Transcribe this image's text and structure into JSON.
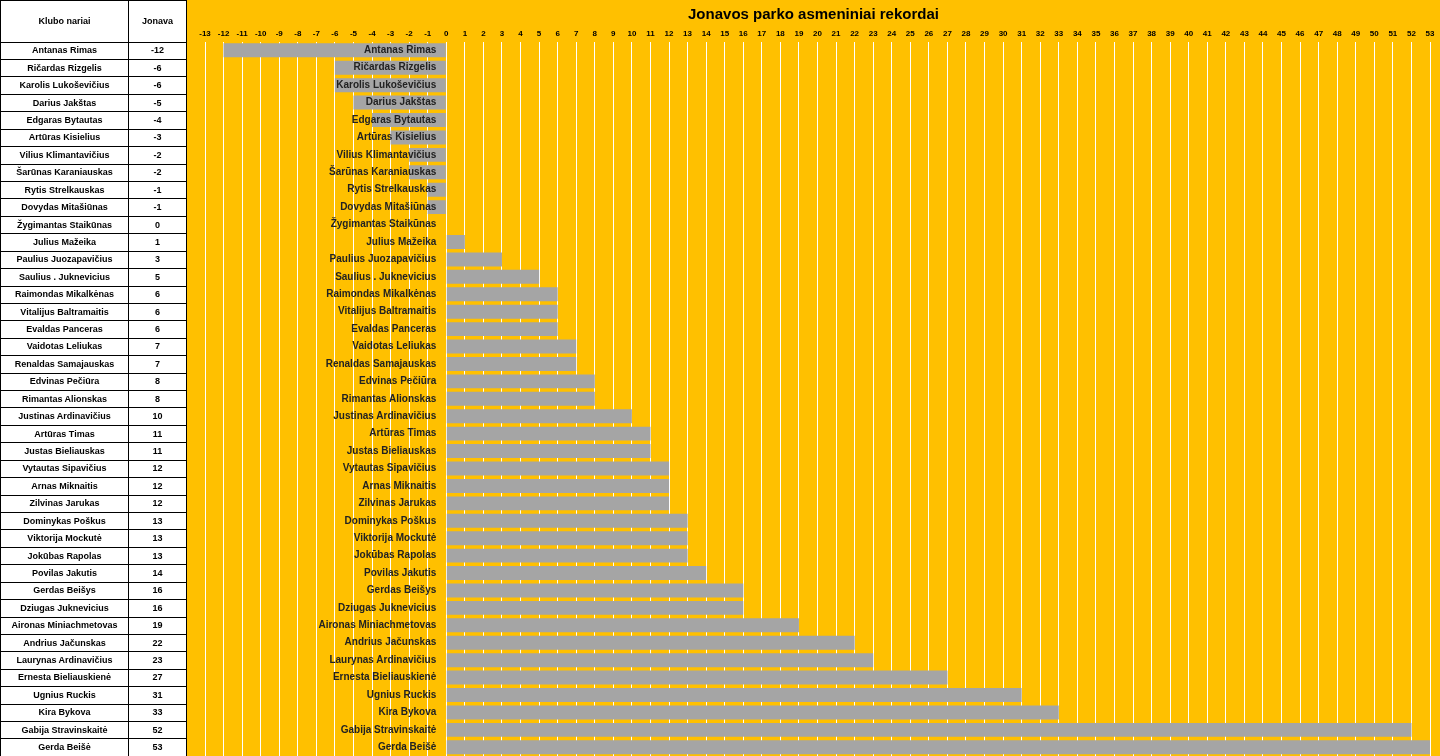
{
  "chart_data": {
    "type": "bar",
    "orientation": "horizontal",
    "title": "Jonavos parko asmeniniai rekordai",
    "ylabel": "Klubo nariai",
    "categories": [
      "Antanas Rimas",
      "Ričardas Rizgelis",
      "Karolis Lukoševičius",
      "Darius Jakštas",
      "Edgaras Bytautas",
      "Artūras Kisielius",
      "Vilius Klimantavičius",
      "Šarūnas Karaniauskas",
      "Rytis Strelkauskas",
      "Dovydas Mitašiūnas",
      "Žygimantas Staikūnas",
      "Julius Mažeika",
      "Paulius Juozapavičius",
      "Saulius . Juknevicius",
      "Raimondas Mikalkėnas",
      "Vitalijus Baltramaitis",
      "Evaldas Panceras",
      "Vaidotas Leliukas",
      "Renaldas Samajauskas",
      "Edvinas Pečiūra",
      "Rimantas Alionskas",
      "Justinas Ardinavičius",
      "Artūras Timas",
      "Justas Bieliauskas",
      "Vytautas Sipavičius",
      "Arnas Miknaitis",
      "Zilvinas Jarukas",
      "Dominykas Poškus",
      "Viktorija Mockutė",
      "Jokūbas Rapolas",
      "Povilas Jakutis",
      "Gerdas Beišys",
      "Dziugas Juknevicius",
      "Aironas Miniachmetovas",
      "Andrius Jačunskas",
      "Laurynas Ardinavičius",
      "Ernesta Bieliauskienė",
      "Ugnius Ruckis",
      "Kira Bykova",
      "Gabija Stravinskaitė",
      "Gerda Beišė"
    ],
    "series": [
      {
        "name": "Jonava",
        "color": "#a5a5a5",
        "values": [
          -12,
          -6,
          -6,
          -5,
          -4,
          -3,
          -2,
          -2,
          -1,
          -1,
          0,
          1,
          3,
          5,
          6,
          6,
          6,
          7,
          7,
          8,
          8,
          10,
          11,
          11,
          12,
          12,
          12,
          13,
          13,
          13,
          14,
          16,
          16,
          19,
          22,
          23,
          27,
          31,
          33,
          52,
          53
        ]
      }
    ],
    "xlim": [
      -13,
      53
    ],
    "xticks": [
      -13,
      -12,
      -11,
      -10,
      -9,
      -8,
      -7,
      -6,
      -5,
      -4,
      -3,
      -2,
      -1,
      0,
      1,
      2,
      3,
      4,
      5,
      6,
      7,
      8,
      9,
      10,
      11,
      12,
      13,
      14,
      15,
      16,
      17,
      18,
      19,
      20,
      21,
      22,
      23,
      24,
      25,
      26,
      27,
      28,
      29,
      30,
      31,
      32,
      33,
      34,
      35,
      36,
      37,
      38,
      39,
      40,
      41,
      42,
      43,
      44,
      45,
      46,
      47,
      48,
      49,
      50,
      51,
      52,
      53
    ],
    "grid": "x",
    "legend": false,
    "data_labels": true
  }
}
